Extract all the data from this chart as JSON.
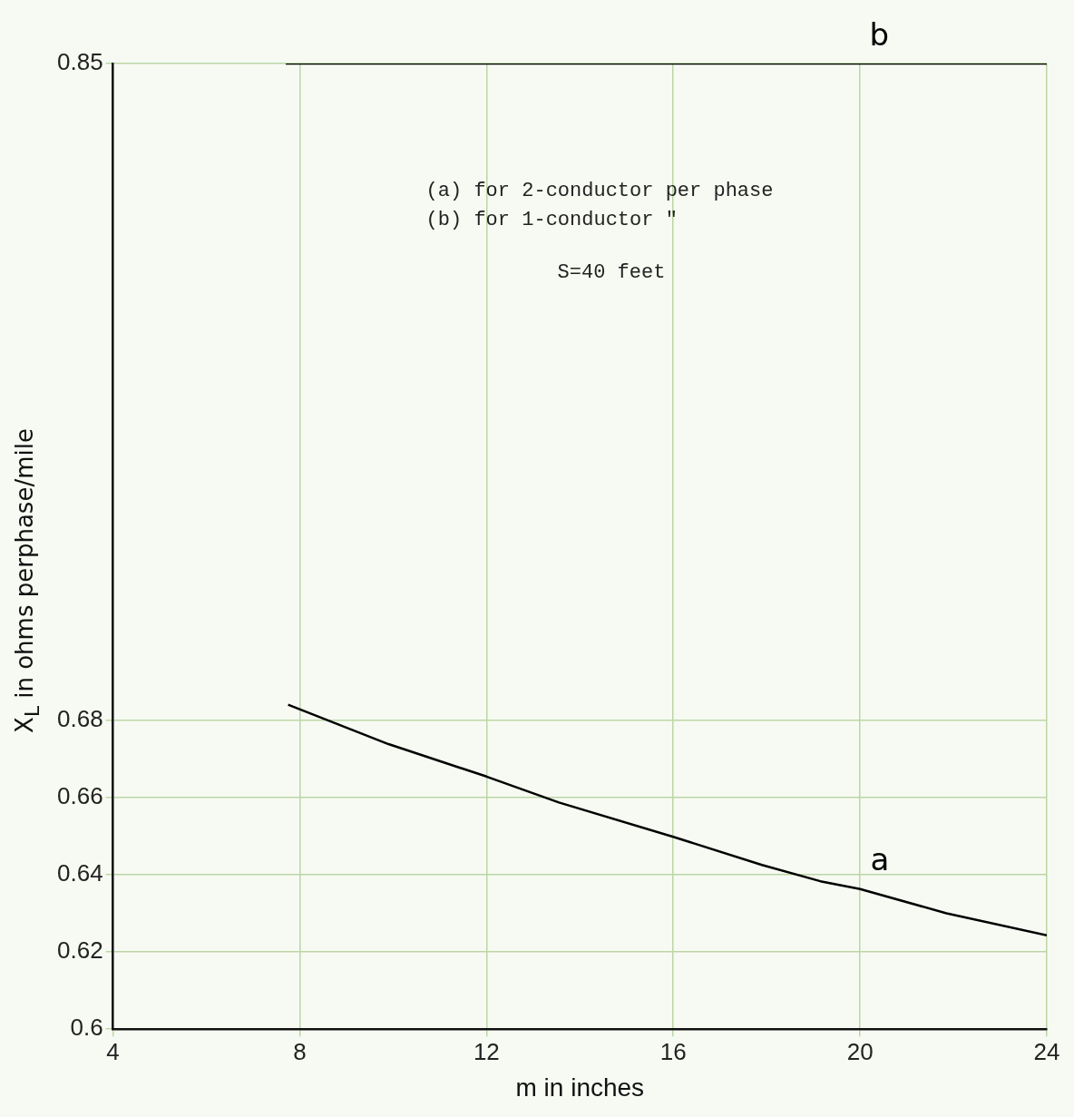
{
  "chart_data": {
    "type": "line",
    "xlabel": "m in inches",
    "ylabel": "X$_{L}$ in ohms perphase/mile",
    "xlim": [
      4,
      24
    ],
    "xticks": [
      4,
      8,
      12,
      16,
      20,
      24
    ],
    "ylim": [
      0.6,
      0.85
    ],
    "yticks": [
      0.6,
      0.62,
      0.64,
      0.66,
      0.68,
      0.85
    ],
    "series": [
      {
        "name": "a",
        "color": "#000000",
        "x": [
          7.75,
          9.9,
          12,
          13.55,
          16,
          17.9,
          19.15,
          20,
          21.85,
          24
        ],
        "values": [
          0.684,
          0.6738,
          0.6654,
          0.6587,
          0.6498,
          0.6425,
          0.6383,
          0.6363,
          0.63,
          0.6243
        ]
      },
      {
        "name": "b",
        "color": "#000000",
        "x": [
          7.7,
          24
        ],
        "values": [
          0.85,
          0.85
        ]
      }
    ],
    "annotations": [
      "(a) for 2-conductor per phase",
      "(b) for 1-conductor \"",
      "S=40 feet"
    ],
    "grid": true,
    "legend": false,
    "marker": "none",
    "line_style": "solid"
  }
}
